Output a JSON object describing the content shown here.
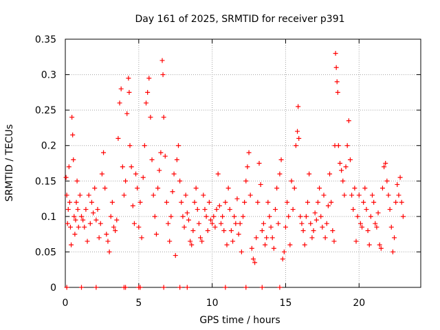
{
  "chart_data": {
    "type": "scatter",
    "title": "Day 161 of 2025, SRMTID for receiver p391",
    "xlabel": "GPS time / hours",
    "ylabel": "SRMTID / TECUs",
    "xlim": [
      0,
      24.2
    ],
    "ylim": [
      0,
      0.35
    ],
    "x_ticks": [
      0,
      5,
      10,
      15,
      20
    ],
    "x_tick_labels": [
      "0",
      "5",
      "10",
      "15",
      "20"
    ],
    "y_ticks": [
      0,
      0.05,
      0.1,
      0.15,
      0.2,
      0.25,
      0.3,
      0.35
    ],
    "y_tick_labels": [
      "0",
      "0.05",
      "0.1",
      "0.15",
      "0.2",
      "0.25",
      "0.3",
      "0.35"
    ],
    "grid": true,
    "marker": "+",
    "color": "#ff0000",
    "series": [
      {
        "name": "SRMTID",
        "points": [
          [
            0.05,
            0.155
          ],
          [
            0.1,
            0.13
          ],
          [
            0.15,
            0.09
          ],
          [
            0.2,
            0.11
          ],
          [
            0.25,
            0.17
          ],
          [
            0.3,
            0.12
          ],
          [
            0.35,
            0.085
          ],
          [
            0.4,
            0.06
          ],
          [
            0.45,
            0.24
          ],
          [
            0.5,
            0.215
          ],
          [
            0.55,
            0.18
          ],
          [
            0.6,
            0.1
          ],
          [
            0.65,
            0.075
          ],
          [
            0.7,
            0.095
          ],
          [
            0.75,
            0.12
          ],
          [
            0.8,
            0.15
          ],
          [
            0.85,
            0.11
          ],
          [
            0.9,
            0.085
          ],
          [
            1.0,
            0.13
          ],
          [
            1.1,
            0.1
          ],
          [
            1.2,
            0.095
          ],
          [
            1.3,
            0.085
          ],
          [
            1.4,
            0.11
          ],
          [
            1.5,
            0.065
          ],
          [
            1.6,
            0.13
          ],
          [
            1.7,
            0.09
          ],
          [
            1.8,
            0.12
          ],
          [
            1.9,
            0.105
          ],
          [
            2.0,
            0.14
          ],
          [
            2.1,
            0.095
          ],
          [
            2.2,
            0.11
          ],
          [
            2.3,
            0.07
          ],
          [
            2.4,
            0.09
          ],
          [
            2.5,
            0.16
          ],
          [
            2.6,
            0.19
          ],
          [
            2.7,
            0.14
          ],
          [
            2.8,
            0.075
          ],
          [
            2.9,
            0.065
          ],
          [
            3.0,
            0.05
          ],
          [
            3.1,
            0.1
          ],
          [
            3.2,
            0.12
          ],
          [
            3.3,
            0.085
          ],
          [
            3.4,
            0.08
          ],
          [
            3.5,
            0.095
          ],
          [
            3.6,
            0.21
          ],
          [
            3.7,
            0.26
          ],
          [
            3.8,
            0.28
          ],
          [
            3.9,
            0.17
          ],
          [
            4.0,
            0.13
          ],
          [
            4.1,
            0.15
          ],
          [
            4.2,
            0.245
          ],
          [
            4.3,
            0.295
          ],
          [
            4.35,
            0.275
          ],
          [
            4.4,
            0.2
          ],
          [
            4.5,
            0.17
          ],
          [
            4.6,
            0.115
          ],
          [
            4.7,
            0.09
          ],
          [
            4.8,
            0.16
          ],
          [
            4.9,
            0.14
          ],
          [
            5.0,
            0.085
          ],
          [
            5.1,
            0.12
          ],
          [
            5.2,
            0.07
          ],
          [
            5.3,
            0.155
          ],
          [
            5.4,
            0.2
          ],
          [
            5.5,
            0.26
          ],
          [
            5.6,
            0.275
          ],
          [
            5.7,
            0.295
          ],
          [
            5.8,
            0.24
          ],
          [
            5.9,
            0.18
          ],
          [
            6.0,
            0.13
          ],
          [
            6.1,
            0.1
          ],
          [
            6.2,
            0.075
          ],
          [
            6.3,
            0.14
          ],
          [
            6.4,
            0.165
          ],
          [
            6.5,
            0.19
          ],
          [
            6.6,
            0.32
          ],
          [
            6.65,
            0.3
          ],
          [
            6.7,
            0.24
          ],
          [
            6.8,
            0.185
          ],
          [
            6.9,
            0.12
          ],
          [
            7.0,
            0.09
          ],
          [
            7.1,
            0.065
          ],
          [
            7.2,
            0.1
          ],
          [
            7.3,
            0.135
          ],
          [
            7.4,
            0.16
          ],
          [
            7.5,
            0.045
          ],
          [
            7.6,
            0.18
          ],
          [
            7.7,
            0.2
          ],
          [
            7.8,
            0.15
          ],
          [
            7.9,
            0.12
          ],
          [
            8.0,
            0.1
          ],
          [
            8.1,
            0.085
          ],
          [
            8.2,
            0.13
          ],
          [
            8.3,
            0.105
          ],
          [
            8.4,
            0.095
          ],
          [
            8.5,
            0.065
          ],
          [
            8.6,
            0.06
          ],
          [
            8.7,
            0.08
          ],
          [
            8.8,
            0.12
          ],
          [
            8.9,
            0.14
          ],
          [
            9.0,
            0.11
          ],
          [
            9.1,
            0.09
          ],
          [
            9.2,
            0.07
          ],
          [
            9.3,
            0.065
          ],
          [
            9.4,
            0.13
          ],
          [
            9.5,
            0.11
          ],
          [
            9.6,
            0.1
          ],
          [
            9.7,
            0.08
          ],
          [
            9.8,
            0.12
          ],
          [
            9.9,
            0.095
          ],
          [
            10.0,
            0.09
          ],
          [
            10.1,
            0.1
          ],
          [
            10.2,
            0.085
          ],
          [
            10.3,
            0.11
          ],
          [
            10.4,
            0.16
          ],
          [
            10.5,
            0.115
          ],
          [
            10.6,
            0.09
          ],
          [
            10.7,
            0.1
          ],
          [
            10.8,
            0.08
          ],
          [
            10.9,
            0.12
          ],
          [
            11.0,
            0.06
          ],
          [
            11.1,
            0.14
          ],
          [
            11.2,
            0.11
          ],
          [
            11.3,
            0.08
          ],
          [
            11.4,
            0.065
          ],
          [
            11.5,
            0.1
          ],
          [
            11.6,
            0.09
          ],
          [
            11.7,
            0.125
          ],
          [
            11.8,
            0.075
          ],
          [
            11.9,
            0.09
          ],
          [
            12.0,
            0.05
          ],
          [
            12.1,
            0.1
          ],
          [
            12.2,
            0.12
          ],
          [
            12.3,
            0.15
          ],
          [
            12.4,
            0.17
          ],
          [
            12.5,
            0.19
          ],
          [
            12.6,
            0.13
          ],
          [
            12.7,
            0.055
          ],
          [
            12.8,
            0.04
          ],
          [
            12.9,
            0.035
          ],
          [
            13.0,
            0.07
          ],
          [
            13.1,
            0.12
          ],
          [
            13.2,
            0.175
          ],
          [
            13.3,
            0.145
          ],
          [
            13.4,
            0.08
          ],
          [
            13.5,
            0.09
          ],
          [
            13.6,
            0.06
          ],
          [
            13.7,
            0.07
          ],
          [
            13.8,
            0.12
          ],
          [
            13.9,
            0.1
          ],
          [
            14.0,
            0.085
          ],
          [
            14.1,
            0.07
          ],
          [
            14.2,
            0.055
          ],
          [
            14.3,
            0.11
          ],
          [
            14.4,
            0.14
          ],
          [
            14.5,
            0.09
          ],
          [
            14.6,
            0.16
          ],
          [
            14.7,
            0.18
          ],
          [
            14.8,
            0.04
          ],
          [
            14.9,
            0.05
          ],
          [
            15.0,
            0.085
          ],
          [
            15.1,
            0.12
          ],
          [
            15.2,
            0.1
          ],
          [
            15.3,
            0.06
          ],
          [
            15.4,
            0.15
          ],
          [
            15.5,
            0.11
          ],
          [
            15.6,
            0.14
          ],
          [
            15.7,
            0.2
          ],
          [
            15.8,
            0.22
          ],
          [
            15.85,
            0.255
          ],
          [
            15.9,
            0.21
          ],
          [
            16.0,
            0.1
          ],
          [
            16.1,
            0.09
          ],
          [
            16.2,
            0.08
          ],
          [
            16.3,
            0.06
          ],
          [
            16.4,
            0.1
          ],
          [
            16.5,
            0.12
          ],
          [
            16.6,
            0.16
          ],
          [
            16.7,
            0.09
          ],
          [
            16.8,
            0.07
          ],
          [
            16.9,
            0.08
          ],
          [
            17.0,
            0.105
          ],
          [
            17.1,
            0.095
          ],
          [
            17.2,
            0.12
          ],
          [
            17.3,
            0.14
          ],
          [
            17.4,
            0.1
          ],
          [
            17.5,
            0.085
          ],
          [
            17.6,
            0.13
          ],
          [
            17.7,
            0.07
          ],
          [
            17.8,
            0.09
          ],
          [
            17.9,
            0.115
          ],
          [
            18.0,
            0.16
          ],
          [
            18.1,
            0.12
          ],
          [
            18.2,
            0.08
          ],
          [
            18.3,
            0.065
          ],
          [
            18.35,
            0.2
          ],
          [
            18.4,
            0.33
          ],
          [
            18.45,
            0.31
          ],
          [
            18.5,
            0.29
          ],
          [
            18.55,
            0.275
          ],
          [
            18.6,
            0.2
          ],
          [
            18.7,
            0.175
          ],
          [
            18.8,
            0.165
          ],
          [
            18.9,
            0.15
          ],
          [
            19.0,
            0.13
          ],
          [
            19.1,
            0.17
          ],
          [
            19.2,
            0.2
          ],
          [
            19.3,
            0.235
          ],
          [
            19.4,
            0.18
          ],
          [
            19.5,
            0.13
          ],
          [
            19.6,
            0.11
          ],
          [
            19.7,
            0.14
          ],
          [
            19.8,
            0.065
          ],
          [
            19.9,
            0.1
          ],
          [
            20.0,
            0.13
          ],
          [
            20.1,
            0.09
          ],
          [
            20.2,
            0.085
          ],
          [
            20.3,
            0.12
          ],
          [
            20.4,
            0.14
          ],
          [
            20.5,
            0.11
          ],
          [
            20.6,
            0.08
          ],
          [
            20.7,
            0.06
          ],
          [
            20.8,
            0.1
          ],
          [
            20.9,
            0.13
          ],
          [
            21.0,
            0.12
          ],
          [
            21.1,
            0.09
          ],
          [
            21.2,
            0.085
          ],
          [
            21.3,
            0.105
          ],
          [
            21.4,
            0.06
          ],
          [
            21.5,
            0.055
          ],
          [
            21.6,
            0.14
          ],
          [
            21.7,
            0.17
          ],
          [
            21.8,
            0.175
          ],
          [
            21.9,
            0.15
          ],
          [
            22.0,
            0.13
          ],
          [
            22.1,
            0.11
          ],
          [
            22.2,
            0.085
          ],
          [
            22.3,
            0.05
          ],
          [
            22.4,
            0.07
          ],
          [
            22.5,
            0.12
          ],
          [
            22.6,
            0.145
          ],
          [
            22.7,
            0.13
          ],
          [
            22.8,
            0.155
          ],
          [
            22.9,
            0.12
          ],
          [
            23.0,
            0.1
          ],
          [
            0.1,
            0.0
          ],
          [
            1.1,
            0.0
          ],
          [
            2.1,
            0.0
          ],
          [
            4.0,
            0.0
          ],
          [
            4.1,
            0.0
          ],
          [
            5.0,
            0.0
          ],
          [
            5.1,
            0.0
          ],
          [
            6.7,
            0.0
          ],
          [
            7.8,
            0.0
          ],
          [
            8.3,
            0.0
          ],
          [
            10.9,
            0.0
          ],
          [
            12.3,
            0.0
          ],
          [
            13.4,
            0.0
          ],
          [
            14.6,
            0.0
          ]
        ]
      }
    ]
  }
}
